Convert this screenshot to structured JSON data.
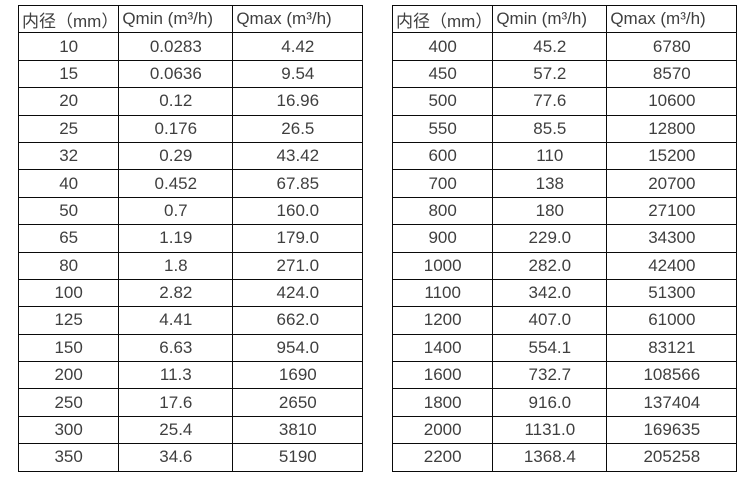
{
  "colors": {
    "background": "#ffffff",
    "border": "#0a0a0a",
    "text": "#3f3f3f"
  },
  "tables": [
    {
      "name": "flow-range-table-small-diameters",
      "headers": [
        "内径（mm）",
        "Qmin (m³/h)",
        "Qmax (m³/h)"
      ],
      "rows": [
        [
          "10",
          "0.0283",
          "4.42"
        ],
        [
          "15",
          "0.0636",
          "9.54"
        ],
        [
          "20",
          "0.12",
          "16.96"
        ],
        [
          "25",
          "0.176",
          "26.5"
        ],
        [
          "32",
          "0.29",
          "43.42"
        ],
        [
          "40",
          "0.452",
          "67.85"
        ],
        [
          "50",
          "0.7",
          "160.0"
        ],
        [
          "65",
          "1.19",
          "179.0"
        ],
        [
          "80",
          "1.8",
          "271.0"
        ],
        [
          "100",
          "2.82",
          "424.0"
        ],
        [
          "125",
          "4.41",
          "662.0"
        ],
        [
          "150",
          "6.63",
          "954.0"
        ],
        [
          "200",
          "11.3",
          "1690"
        ],
        [
          "250",
          "17.6",
          "2650"
        ],
        [
          "300",
          "25.4",
          "3810"
        ],
        [
          "350",
          "34.6",
          "5190"
        ]
      ]
    },
    {
      "name": "flow-range-table-large-diameters",
      "headers": [
        "内径（mm）",
        "Qmin (m³/h)",
        "Qmax (m³/h)"
      ],
      "rows": [
        [
          "400",
          "45.2",
          "6780"
        ],
        [
          "450",
          "57.2",
          "8570"
        ],
        [
          "500",
          "77.6",
          "10600"
        ],
        [
          "550",
          "85.5",
          "12800"
        ],
        [
          "600",
          "110",
          "15200"
        ],
        [
          "700",
          "138",
          "20700"
        ],
        [
          "800",
          "180",
          "27100"
        ],
        [
          "900",
          "229.0",
          "34300"
        ],
        [
          "1000",
          "282.0",
          "42400"
        ],
        [
          "1100",
          "342.0",
          "51300"
        ],
        [
          "1200",
          "407.0",
          "61000"
        ],
        [
          "1400",
          "554.1",
          "83121"
        ],
        [
          "1600",
          "732.7",
          "108566"
        ],
        [
          "1800",
          "916.0",
          "137404"
        ],
        [
          "2000",
          "1131.0",
          "169635"
        ],
        [
          "2200",
          "1368.4",
          "205258"
        ]
      ]
    }
  ]
}
